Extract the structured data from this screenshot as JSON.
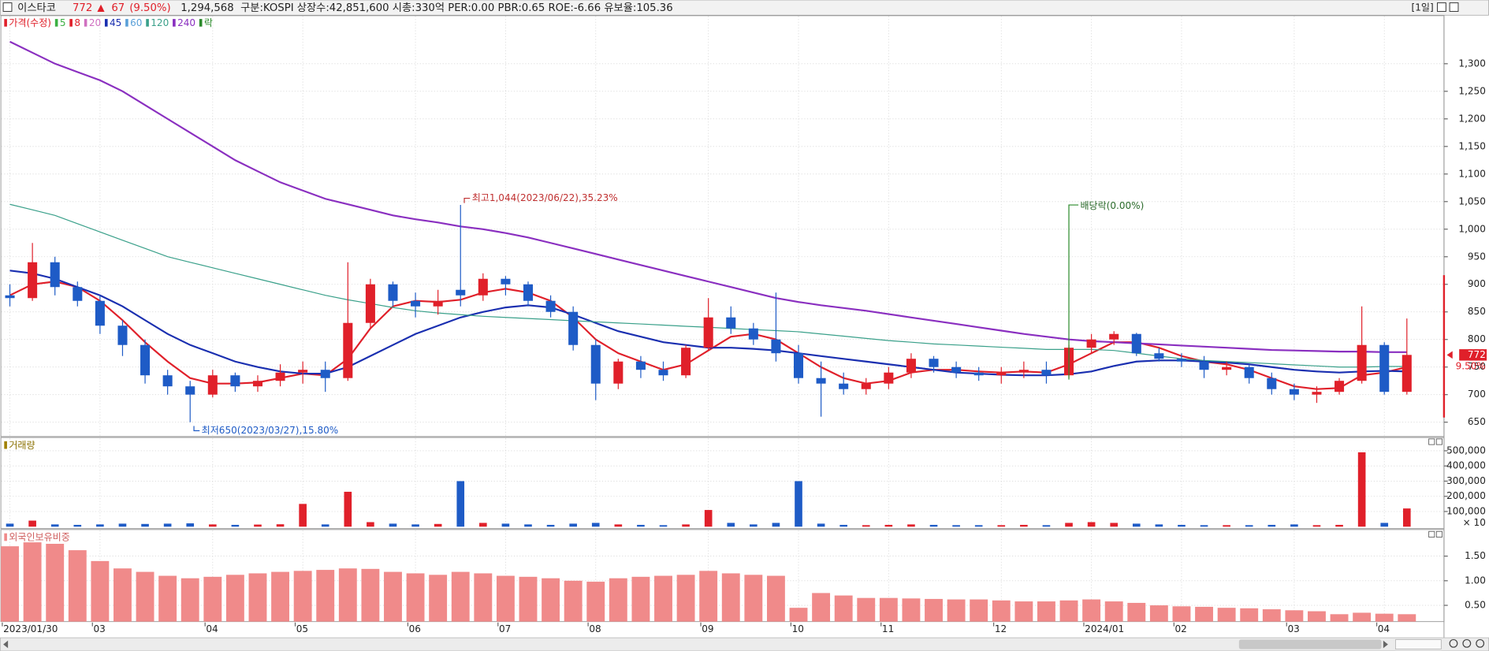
{
  "header": {
    "name": "이스타코",
    "price": "772",
    "change_sign": "▲",
    "change": "67",
    "change_rate": "(9.50%)",
    "volume": "1,294,568",
    "info": "구분:KOSPI 상장수:42,851,600 시총:330억 PER:0.00 PBR:0.65 ROE:-6.66 유보율:105.36",
    "period": "[1일]"
  },
  "chart_data": [
    {
      "type": "candlestick",
      "categories": [
        "2023/01/30",
        null,
        null,
        null,
        "03",
        null,
        null,
        null,
        null,
        "04",
        null,
        null,
        null,
        "05",
        null,
        null,
        null,
        null,
        "06",
        null,
        null,
        null,
        "07",
        null,
        null,
        null,
        "08",
        null,
        null,
        null,
        null,
        "09",
        null,
        null,
        null,
        "10",
        null,
        null,
        null,
        "11",
        null,
        null,
        null,
        null,
        "12",
        null,
        null,
        null,
        "2024/01",
        null,
        null,
        null,
        "02",
        null,
        null,
        null,
        null,
        "03",
        null,
        null,
        null,
        "04",
        null
      ],
      "ohlc": {
        "name": "가격(수정)",
        "color": "#e0202a",
        "down_color": "#1e5bc6",
        "open": [
          880,
          875,
          940,
          895,
          870,
          825,
          790,
          735,
          715,
          700,
          735,
          715,
          725,
          740,
          745,
          730,
          830,
          900,
          870,
          860,
          890,
          880,
          910,
          900,
          870,
          850,
          790,
          720,
          760,
          745,
          735,
          785,
          840,
          820,
          800,
          775,
          730,
          720,
          710,
          720,
          740,
          765,
          750,
          740,
          735,
          740,
          745,
          735,
          785,
          800,
          810,
          775,
          765,
          760,
          745,
          750,
          730,
          710,
          700,
          705,
          725,
          790,
          705
        ],
        "high": [
          900,
          975,
          950,
          905,
          880,
          835,
          800,
          745,
          725,
          745,
          740,
          735,
          755,
          760,
          760,
          940,
          910,
          905,
          885,
          890,
          1044,
          920,
          915,
          905,
          880,
          860,
          800,
          765,
          770,
          760,
          790,
          875,
          860,
          830,
          885,
          790,
          760,
          740,
          730,
          750,
          775,
          770,
          760,
          750,
          750,
          760,
          760,
          790,
          810,
          815,
          812,
          785,
          775,
          770,
          760,
          755,
          740,
          720,
          715,
          730,
          860,
          795,
          838
        ],
        "low": [
          860,
          870,
          880,
          860,
          810,
          770,
          720,
          700,
          650,
          695,
          705,
          705,
          715,
          720,
          705,
          725,
          820,
          860,
          840,
          845,
          860,
          870,
          880,
          860,
          840,
          780,
          690,
          710,
          730,
          725,
          730,
          780,
          810,
          790,
          760,
          720,
          660,
          700,
          700,
          710,
          730,
          740,
          730,
          725,
          720,
          730,
          720,
          730,
          775,
          790,
          770,
          760,
          750,
          730,
          735,
          720,
          700,
          690,
          685,
          700,
          720,
          700,
          700
        ],
        "close": [
          875,
          940,
          895,
          870,
          825,
          790,
          735,
          715,
          700,
          735,
          715,
          725,
          740,
          745,
          730,
          830,
          900,
          870,
          860,
          870,
          880,
          910,
          900,
          870,
          850,
          790,
          720,
          760,
          745,
          735,
          785,
          840,
          820,
          800,
          775,
          730,
          720,
          710,
          720,
          740,
          765,
          750,
          740,
          735,
          740,
          745,
          735,
          785,
          800,
          810,
          775,
          765,
          760,
          745,
          750,
          730,
          710,
          700,
          705,
          725,
          790,
          705,
          772
        ]
      },
      "series": [
        {
          "name": "5",
          "color": "#3cb043"
        },
        {
          "name": "8",
          "color": "#e0202a",
          "values": [
            880,
            900,
            905,
            895,
            870,
            835,
            795,
            760,
            730,
            720,
            720,
            722,
            730,
            738,
            735,
            765,
            820,
            860,
            870,
            868,
            872,
            885,
            892,
            885,
            870,
            840,
            800,
            775,
            760,
            745,
            755,
            780,
            805,
            810,
            800,
            775,
            750,
            730,
            720,
            725,
            740,
            745,
            745,
            742,
            740,
            742,
            740,
            755,
            775,
            795,
            795,
            785,
            770,
            760,
            755,
            745,
            730,
            715,
            710,
            712,
            735,
            740,
            750
          ]
        },
        {
          "name": "20",
          "color": "#d070c0"
        },
        {
          "name": "45",
          "color": "#1a2fb0",
          "values": [
            925,
            920,
            910,
            895,
            880,
            860,
            835,
            810,
            790,
            775,
            760,
            750,
            742,
            738,
            738,
            750,
            770,
            790,
            810,
            825,
            840,
            850,
            858,
            862,
            858,
            845,
            830,
            815,
            805,
            795,
            790,
            785,
            785,
            783,
            780,
            775,
            770,
            765,
            760,
            755,
            750,
            745,
            740,
            738,
            736,
            735,
            735,
            737,
            742,
            752,
            760,
            762,
            762,
            760,
            758,
            755,
            750,
            745,
            742,
            740,
            742,
            743,
            742
          ]
        },
        {
          "name": "60",
          "color": "#5aa0d8"
        },
        {
          "name": "120",
          "color": "#3aa08a",
          "values": [
            1045,
            1035,
            1025,
            1010,
            995,
            980,
            965,
            950,
            940,
            930,
            920,
            910,
            900,
            890,
            880,
            872,
            865,
            858,
            852,
            848,
            845,
            842,
            840,
            838,
            836,
            834,
            832,
            830,
            828,
            826,
            824,
            822,
            820,
            818,
            816,
            814,
            810,
            806,
            802,
            798,
            795,
            792,
            790,
            788,
            786,
            784,
            782,
            782,
            782,
            780,
            775,
            770,
            765,
            762,
            760,
            758,
            756,
            754,
            752,
            750,
            750,
            751,
            751
          ]
        },
        {
          "name": "240",
          "color": "#8a2fc0",
          "values": [
            1340,
            1320,
            1300,
            1285,
            1270,
            1250,
            1225,
            1200,
            1175,
            1150,
            1125,
            1105,
            1085,
            1070,
            1055,
            1045,
            1035,
            1025,
            1018,
            1012,
            1005,
            1000,
            993,
            985,
            975,
            965,
            955,
            945,
            935,
            925,
            915,
            905,
            895,
            885,
            875,
            868,
            862,
            857,
            852,
            846,
            840,
            834,
            828,
            822,
            816,
            810,
            805,
            800,
            797,
            795,
            793,
            791,
            789,
            787,
            785,
            783,
            781,
            780,
            779,
            778,
            778,
            777,
            777
          ]
        }
      ],
      "event_marker": {
        "name": "락",
        "color": "#2a8a2a"
      },
      "annotations": {
        "high": "최고1,044(2023/06/22),35.23%",
        "low": "최저650(2023/03/27),15.80%",
        "dividend": "배당락(0.00%)"
      },
      "last_price": {
        "value": 772,
        "label": "772"
      },
      "last_change": "9.50%",
      "ylim": [
        624,
        1388
      ],
      "yticks": [
        650,
        700,
        750,
        800,
        850,
        900,
        950,
        {
          "value": 1000,
          "label": "1,000"
        },
        {
          "value": 1050,
          "label": "1,050"
        },
        {
          "value": 1100,
          "label": "1,100"
        },
        {
          "value": 1150,
          "label": "1,150"
        },
        {
          "value": 1200,
          "label": "1,200"
        },
        {
          "value": 1250,
          "label": "1,250"
        },
        {
          "value": 1300,
          "label": "1,300"
        }
      ],
      "grid": true
    },
    {
      "type": "bar",
      "title": "거래량",
      "unit_label": "× 10",
      "values": [
        20000,
        40000,
        15000,
        12000,
        15000,
        20000,
        18000,
        20000,
        22000,
        15000,
        12000,
        14000,
        16000,
        150000,
        15000,
        230000,
        30000,
        20000,
        15000,
        18000,
        300000,
        25000,
        20000,
        15000,
        12000,
        20000,
        25000,
        15000,
        12000,
        10000,
        15000,
        110000,
        25000,
        15000,
        25000,
        300000,
        20000,
        12000,
        10000,
        12000,
        15000,
        12000,
        10000,
        10000,
        10000,
        12000,
        10000,
        25000,
        30000,
        25000,
        20000,
        15000,
        12000,
        10000,
        10000,
        10000,
        12000,
        15000,
        10000,
        12000,
        490000,
        25000,
        120000
      ],
      "ylim": [
        0,
        587500
      ],
      "yticks": [
        {
          "value": 100000,
          "label": "100,000"
        },
        {
          "value": 200000,
          "label": "200,000"
        },
        {
          "value": 300000,
          "label": "300,000"
        },
        {
          "value": 400000,
          "label": "400,000"
        },
        {
          "value": 500000,
          "label": "500,000"
        }
      ],
      "grid": true
    },
    {
      "type": "bar",
      "title": "외국인보유비중",
      "color": "#f08a8a",
      "values": [
        1.7,
        1.78,
        1.75,
        1.62,
        1.4,
        1.25,
        1.18,
        1.1,
        1.05,
        1.08,
        1.12,
        1.15,
        1.18,
        1.2,
        1.22,
        1.25,
        1.24,
        1.18,
        1.15,
        1.12,
        1.18,
        1.15,
        1.1,
        1.08,
        1.05,
        1.0,
        0.98,
        1.05,
        1.08,
        1.1,
        1.12,
        1.2,
        1.15,
        1.12,
        1.1,
        0.45,
        0.75,
        0.7,
        0.65,
        0.65,
        0.64,
        0.63,
        0.62,
        0.62,
        0.6,
        0.58,
        0.58,
        0.6,
        0.62,
        0.58,
        0.55,
        0.5,
        0.48,
        0.47,
        0.45,
        0.44,
        0.42,
        0.4,
        0.38,
        0.32,
        0.35,
        0.33,
        0.32
      ],
      "ylim": [
        0.17,
        2.04
      ],
      "yticks": [
        {
          "value": 0.5,
          "label": "0.50"
        },
        {
          "value": 1,
          "label": "1.00"
        },
        {
          "value": 1.5,
          "label": "1.50"
        }
      ],
      "grid": true
    }
  ]
}
